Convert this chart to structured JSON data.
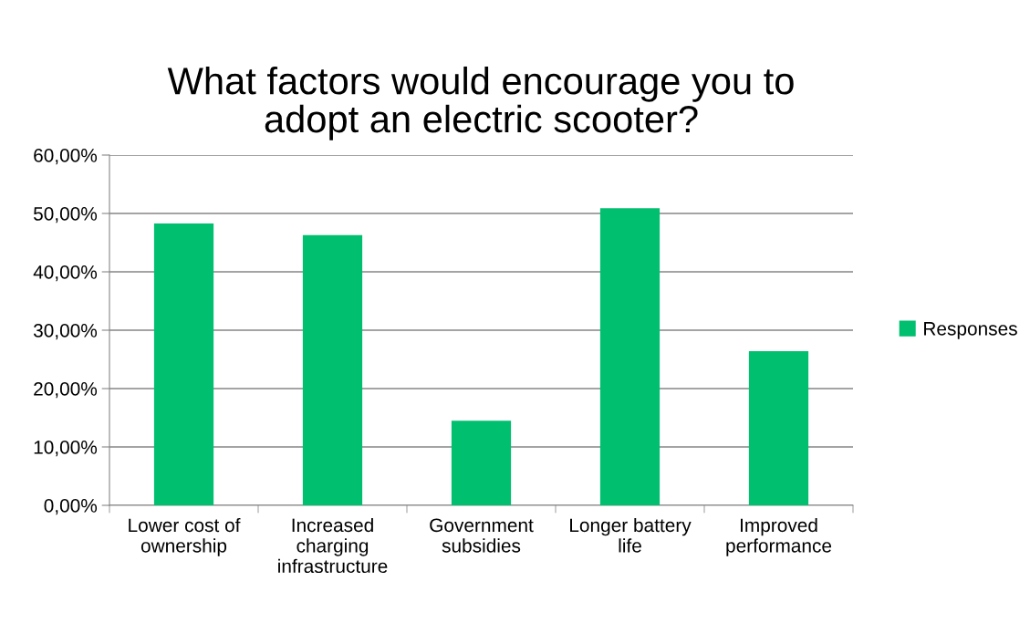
{
  "chart_data": {
    "type": "bar",
    "title": "What factors would encourage you to\nadopt an electric scooter?",
    "categories": [
      "Lower cost of\nownership",
      "Increased\ncharging\ninfrastructure",
      "Government\nsubsidies",
      "Longer battery\nlife",
      "Improved\nperformance"
    ],
    "series": [
      {
        "name": "Responses",
        "color": "#00bf6f",
        "values": [
          48.3,
          46.3,
          14.5,
          50.9,
          26.4
        ]
      }
    ],
    "ylim": [
      0,
      60
    ],
    "yticks": [
      {
        "value": 0,
        "label": "0,00%"
      },
      {
        "value": 10,
        "label": "10,00%"
      },
      {
        "value": 20,
        "label": "20,00%"
      },
      {
        "value": 30,
        "label": "30,00%"
      },
      {
        "value": 40,
        "label": "40,00%"
      },
      {
        "value": 50,
        "label": "50,00%"
      },
      {
        "value": 60,
        "label": "60,00%"
      }
    ],
    "grid": "y",
    "legend": "right"
  }
}
